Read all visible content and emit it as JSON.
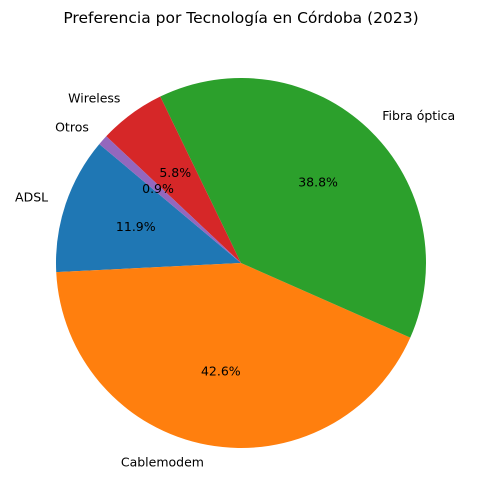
{
  "chart_data": {
    "type": "pie",
    "title": "Preferencia por Tecnología en Córdoba (2023)",
    "categories": [
      "ADSL",
      "Cablemodem",
      "Fibra óptica",
      "Wireless",
      "Otros"
    ],
    "values": [
      11.9,
      42.6,
      38.8,
      5.8,
      0.9
    ],
    "value_labels": [
      "11.9%",
      "42.6%",
      "38.8%",
      "5.8%",
      "0.9%"
    ],
    "colors": [
      "#1f77b4",
      "#ff7f0e",
      "#2ca02c",
      "#d62728",
      "#9467bd"
    ],
    "start_angle_deg": 140,
    "direction": "counterclockwise",
    "legend": "none"
  }
}
